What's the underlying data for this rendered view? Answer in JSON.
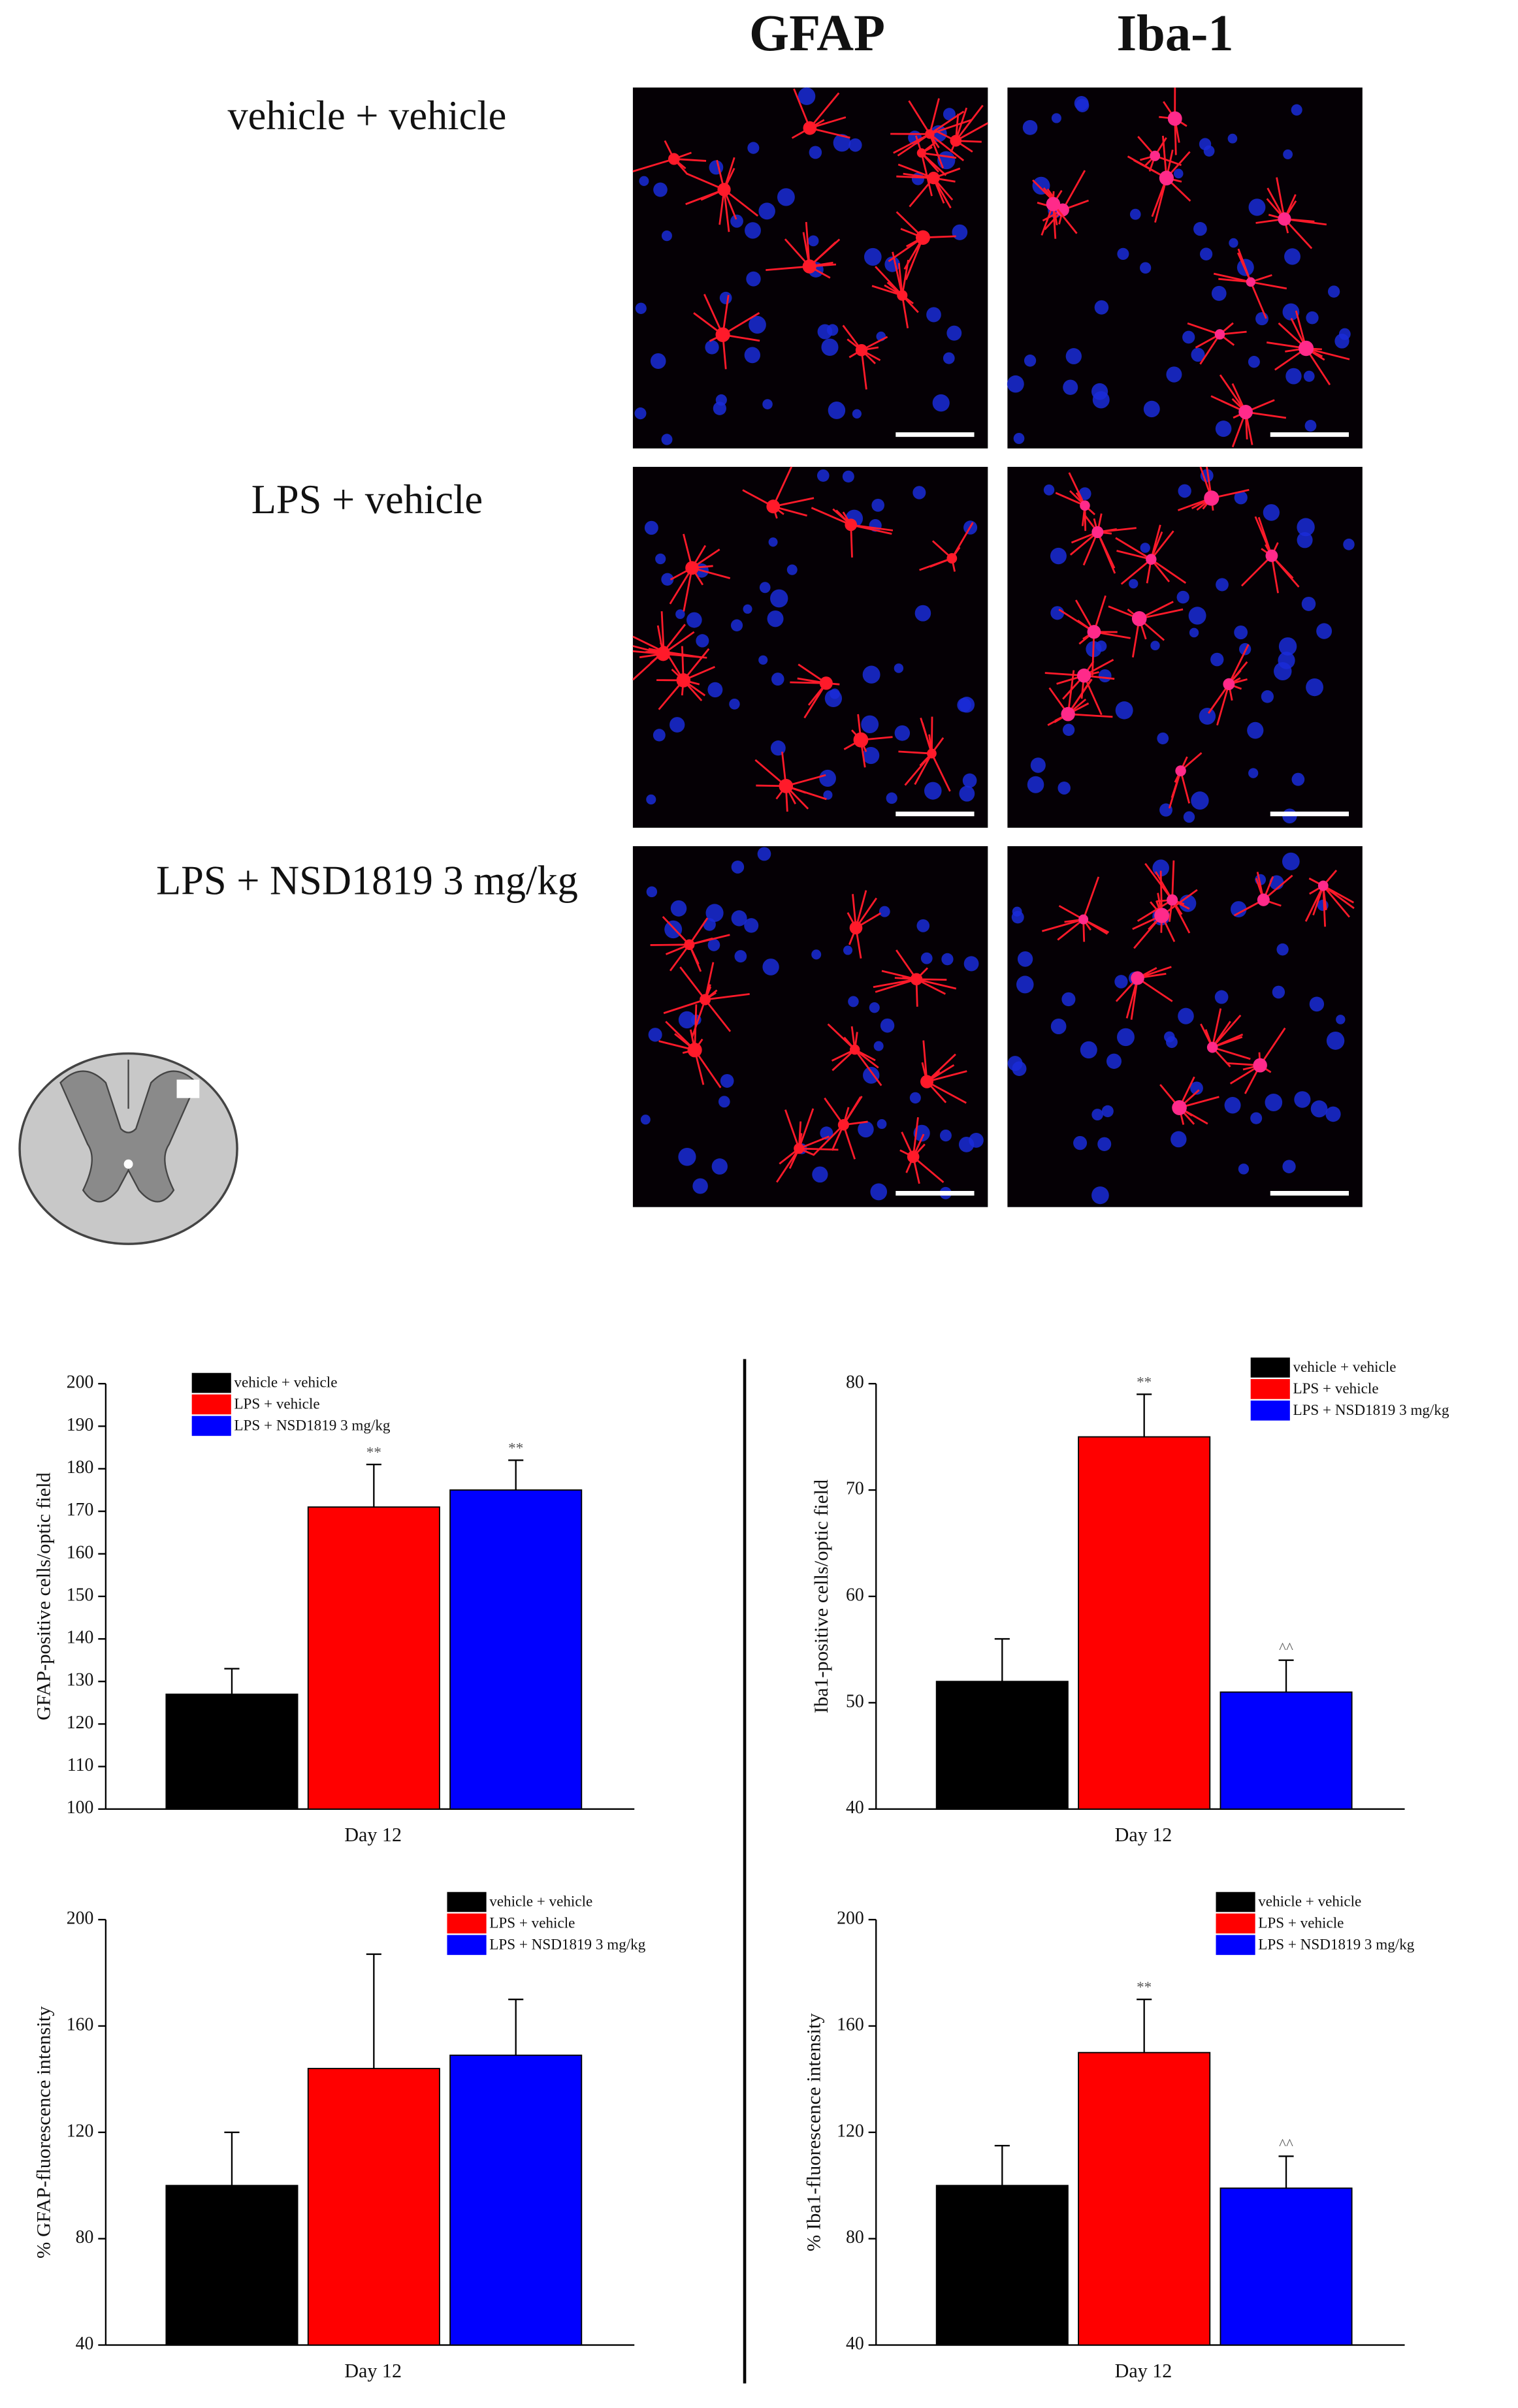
{
  "figure": {
    "columns": [
      "GFAP",
      "Iba-1"
    ],
    "rows": [
      "vehicle + vehicle",
      "LPS + vehicle",
      "LPS + NSD1819 3 mg/kg"
    ]
  },
  "chart_data": [
    {
      "type": "bar",
      "y_label": "GFAP-positive cells/optic field",
      "categories": [
        "Day 12"
      ],
      "ylim": [
        100,
        200
      ],
      "yticks": [
        100,
        110,
        120,
        130,
        140,
        150,
        160,
        170,
        180,
        190,
        200
      ],
      "series": [
        {
          "name": "vehicle + vehicle",
          "color": "#000000",
          "values": [
            127
          ],
          "errors": [
            6
          ]
        },
        {
          "name": "LPS + vehicle",
          "color": "#ff0000",
          "values": [
            171
          ],
          "errors": [
            10
          ],
          "annotation": "**"
        },
        {
          "name": "LPS + NSD1819 3 mg/kg",
          "color": "#0000ff",
          "values": [
            175
          ],
          "errors": [
            7
          ],
          "annotation": "**"
        }
      ]
    },
    {
      "type": "bar",
      "y_label": "Iba1-positive cells/optic field",
      "categories": [
        "Day 12"
      ],
      "ylim": [
        40,
        80
      ],
      "yticks": [
        40,
        50,
        60,
        70,
        80
      ],
      "series": [
        {
          "name": "vehicle + vehicle",
          "color": "#000000",
          "values": [
            52
          ],
          "errors": [
            4
          ]
        },
        {
          "name": "LPS + vehicle",
          "color": "#ff0000",
          "values": [
            75
          ],
          "errors": [
            4
          ],
          "annotation": "**"
        },
        {
          "name": "LPS + NSD1819 3 mg/kg",
          "color": "#0000ff",
          "values": [
            51
          ],
          "errors": [
            3
          ],
          "annotation": "^^"
        }
      ]
    },
    {
      "type": "bar",
      "y_label": "% GFAP-fluorescence intensity",
      "categories": [
        "Day 12"
      ],
      "ylim": [
        40,
        200
      ],
      "yticks": [
        40,
        80,
        120,
        160,
        200
      ],
      "series": [
        {
          "name": "vehicle + vehicle",
          "color": "#000000",
          "values": [
            100
          ],
          "errors": [
            20
          ]
        },
        {
          "name": "LPS + vehicle",
          "color": "#ff0000",
          "values": [
            144
          ],
          "errors": [
            43
          ]
        },
        {
          "name": "LPS + NSD1819 3 mg/kg",
          "color": "#0000ff",
          "values": [
            149
          ],
          "errors": [
            21
          ]
        }
      ]
    },
    {
      "type": "bar",
      "y_label": "% Iba1-fluorescence intensity",
      "categories": [
        "Day 12"
      ],
      "ylim": [
        40,
        200
      ],
      "yticks": [
        40,
        80,
        120,
        160,
        200
      ],
      "series": [
        {
          "name": "vehicle + vehicle",
          "color": "#000000",
          "values": [
            100
          ],
          "errors": [
            15
          ]
        },
        {
          "name": "LPS + vehicle",
          "color": "#ff0000",
          "values": [
            150
          ],
          "errors": [
            20
          ],
          "annotation": "**"
        },
        {
          "name": "LPS + NSD1819 3 mg/kg",
          "color": "#0000ff",
          "values": [
            99
          ],
          "errors": [
            12
          ],
          "annotation": "^^"
        }
      ]
    }
  ]
}
